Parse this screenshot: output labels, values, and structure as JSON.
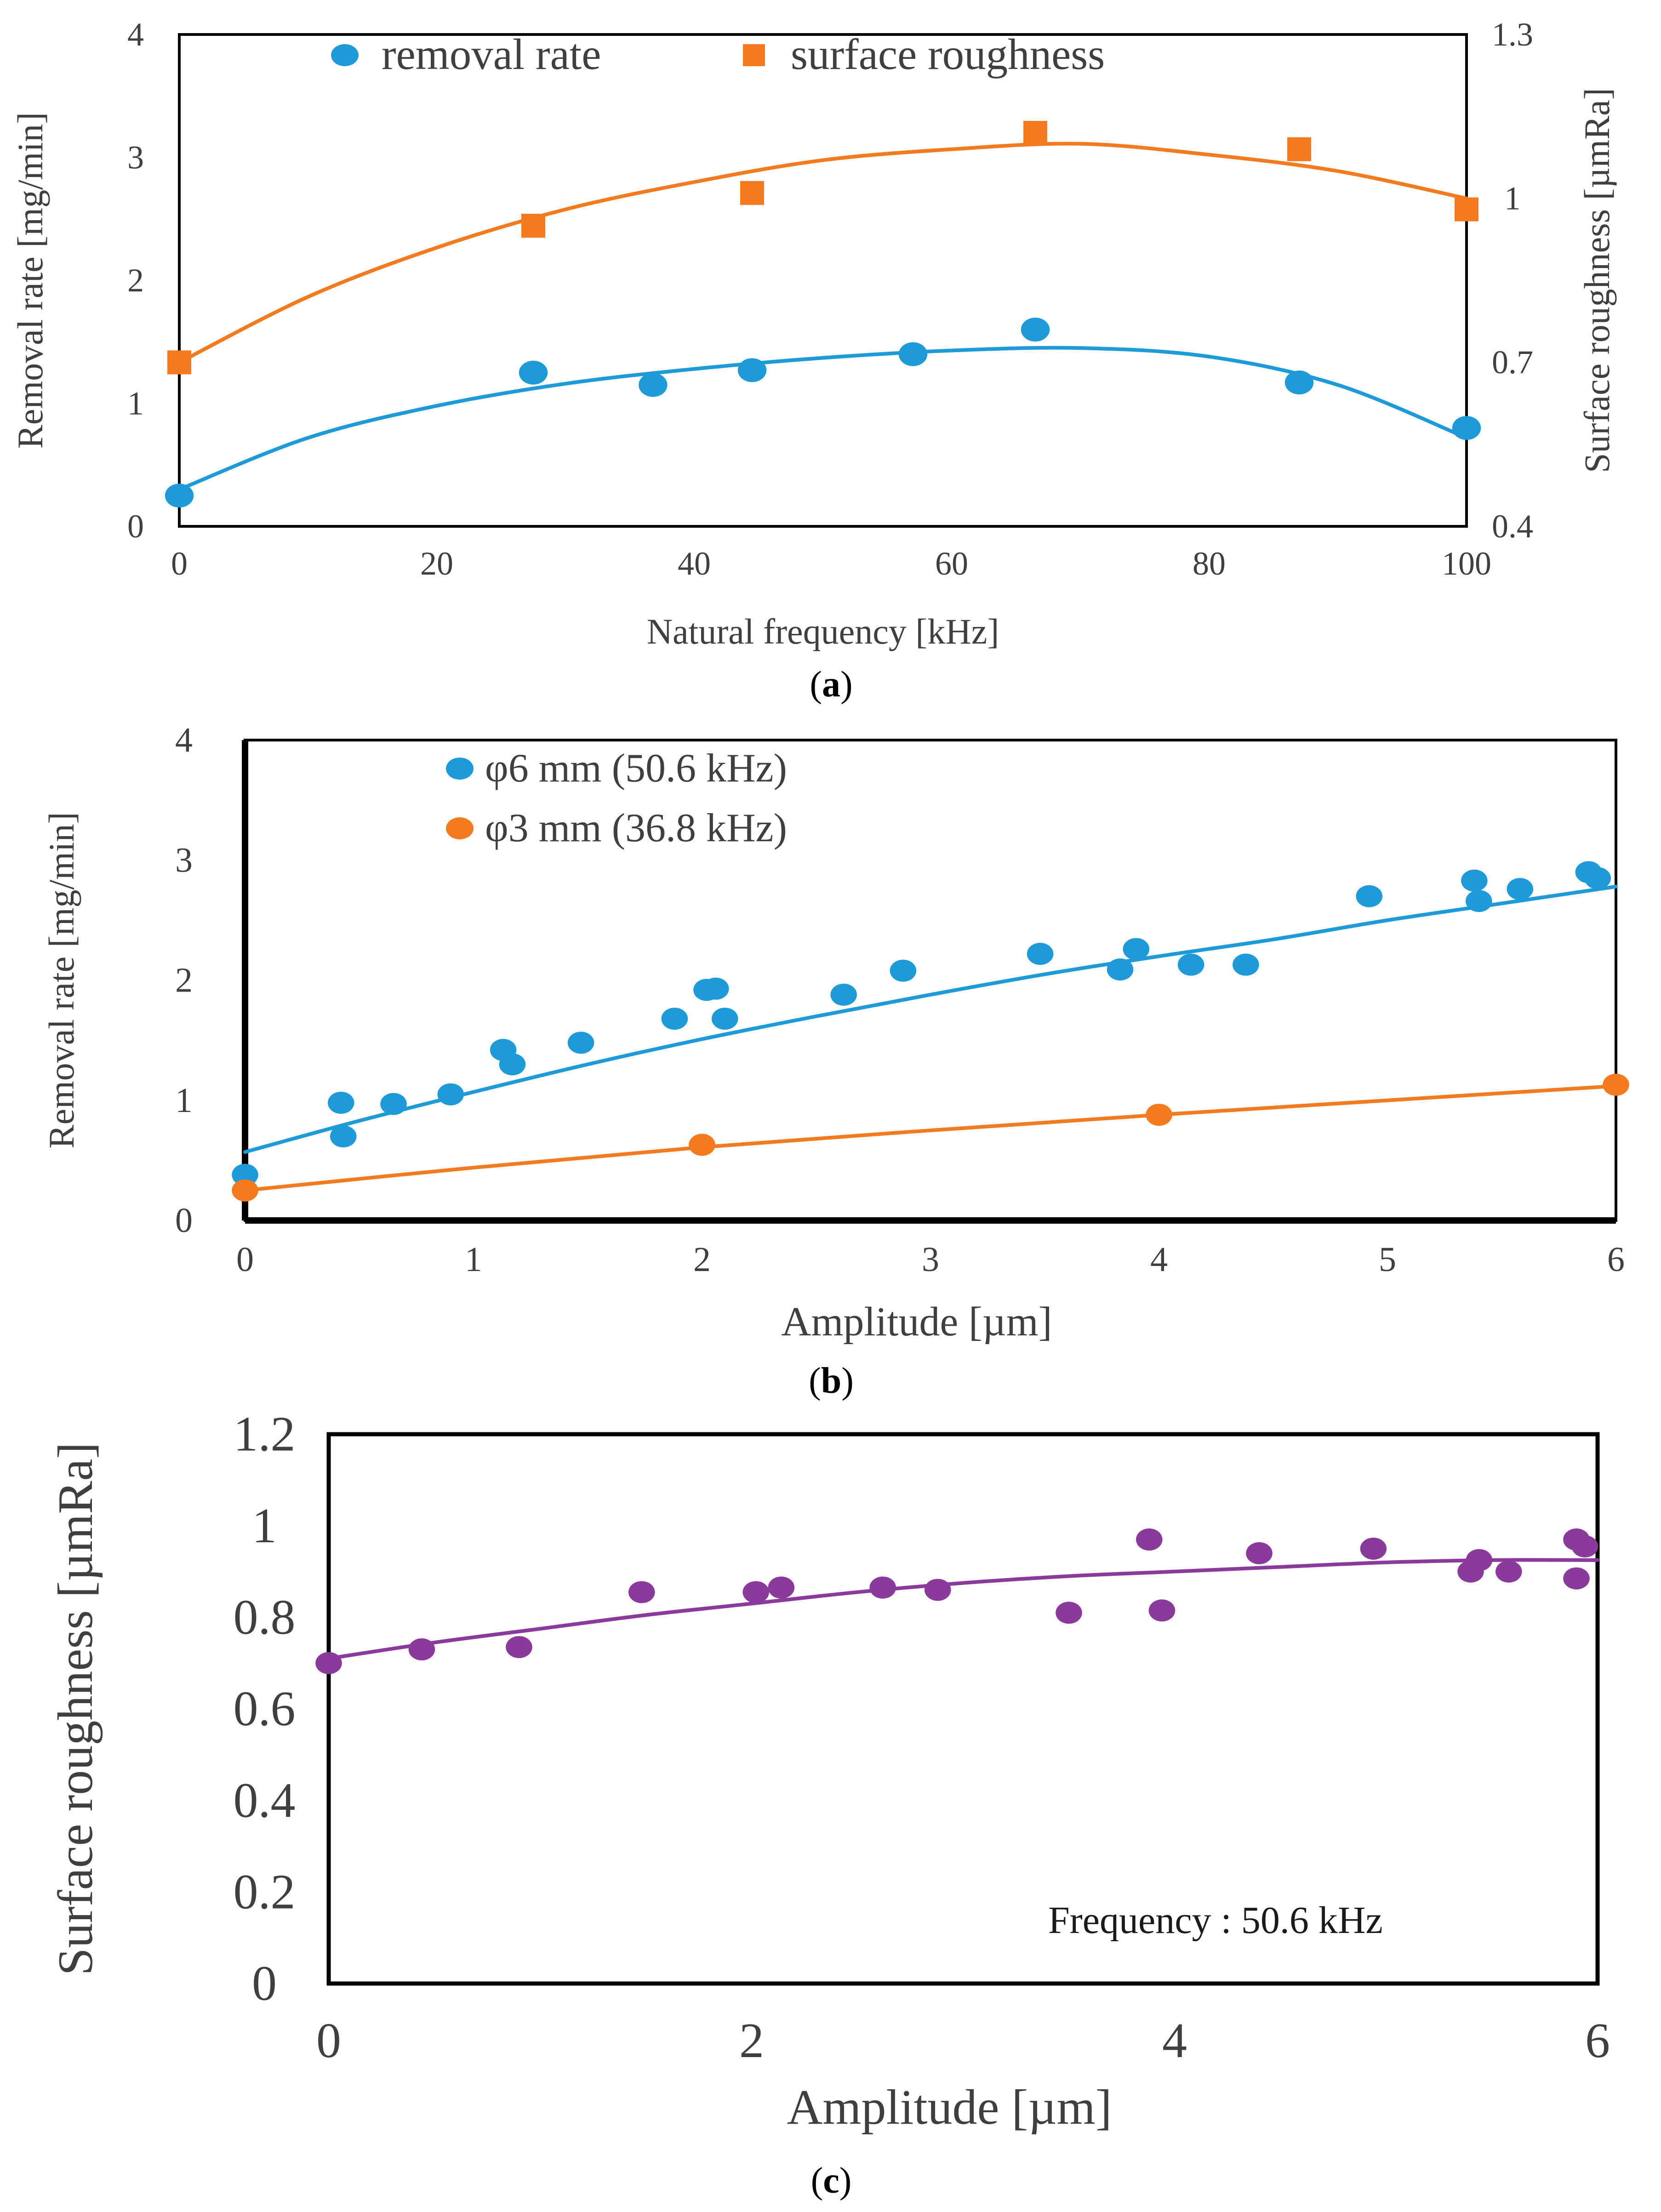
{
  "colors": {
    "blue": "#1f9ad8",
    "orange": "#f47a20",
    "purple": "#8a3a9b",
    "axis": "#000000",
    "text_gray": "#3f3f3f"
  },
  "chart_data": [
    {
      "id": "a",
      "type": "scatter",
      "caption": "(a)",
      "caption_letter": "a",
      "xlabel": "Natural frequency [kHz]",
      "ylabel": "Removal rate [mg/min]",
      "y2label": "Surface roughness [µmRa]",
      "xlim": [
        0,
        100
      ],
      "ylim": [
        0,
        4
      ],
      "y2lim": [
        0.4,
        1.3
      ],
      "xticks": [
        "0",
        "20",
        "40",
        "60",
        "80",
        "100"
      ],
      "yticks": [
        "0",
        "1",
        "2",
        "3",
        "4"
      ],
      "y2ticks": [
        "0.4",
        "0.7",
        "1",
        "1.3"
      ],
      "legend_position": "top",
      "series": [
        {
          "name": "removal rate",
          "marker": "circle",
          "color": "#1f9ad8",
          "axis": "left",
          "x": [
            0,
            27.5,
            36.8,
            44.5,
            57,
            66.5,
            87,
            100
          ],
          "y": [
            0.25,
            1.25,
            1.15,
            1.27,
            1.4,
            1.6,
            1.17,
            0.8
          ],
          "trend": {
            "x": [
              0,
              10,
              20,
              30,
              40,
              50,
              60,
              70,
              80,
              90,
              100
            ],
            "y": [
              0.3,
              0.72,
              0.98,
              1.16,
              1.28,
              1.37,
              1.43,
              1.45,
              1.38,
              1.15,
              0.72
            ]
          }
        },
        {
          "name": "surface roughness",
          "marker": "square",
          "color": "#f47a20",
          "axis": "right",
          "x": [
            0,
            27.5,
            44.5,
            66.5,
            87,
            100
          ],
          "y": [
            0.7,
            0.95,
            1.01,
            1.12,
            1.09,
            0.98
          ],
          "trend": {
            "x": [
              0,
              10,
              20,
              30,
              40,
              50,
              60,
              70,
              80,
              90,
              100
            ],
            "y": [
              0.7,
              0.82,
              0.91,
              0.98,
              1.03,
              1.07,
              1.09,
              1.1,
              1.08,
              1.05,
              1.0
            ]
          }
        }
      ]
    },
    {
      "id": "b",
      "type": "scatter",
      "caption": "(b)",
      "caption_letter": "b",
      "xlabel": "Amplitude [µm]",
      "ylabel": "Removal rate [mg/min]",
      "xlim": [
        0,
        6
      ],
      "ylim": [
        0,
        4
      ],
      "xticks": [
        "0",
        "1",
        "2",
        "3",
        "4",
        "5",
        "6"
      ],
      "yticks": [
        "0",
        "1",
        "2",
        "3",
        "4"
      ],
      "legend_position": "top-left",
      "series": [
        {
          "name": "φ6 mm (50.6 kHz)",
          "marker": "circle",
          "color": "#1f9ad8",
          "x": [
            0,
            0.42,
            0.43,
            0.65,
            0.9,
            1.13,
            1.17,
            1.47,
            1.88,
            2.02,
            2.06,
            2.1,
            2.62,
            2.88,
            3.48,
            3.83,
            3.9,
            4.14,
            4.38,
            4.92,
            5.38,
            5.4,
            5.58,
            5.88,
            5.92
          ],
          "y": [
            0.38,
            0.98,
            0.7,
            0.97,
            1.05,
            1.42,
            1.3,
            1.48,
            1.68,
            1.92,
            1.93,
            1.68,
            1.88,
            2.08,
            2.22,
            2.09,
            2.26,
            2.13,
            2.13,
            2.7,
            2.83,
            2.66,
            2.76,
            2.9,
            2.85
          ],
          "trend": {
            "x": [
              0,
              0.5,
              1,
              1.5,
              2,
              2.5,
              3,
              3.5,
              4,
              4.5,
              5,
              5.5,
              6
            ],
            "y": [
              0.57,
              0.83,
              1.07,
              1.3,
              1.51,
              1.7,
              1.88,
              2.05,
              2.2,
              2.34,
              2.5,
              2.64,
              2.78
            ]
          }
        },
        {
          "name": "φ3 mm (36.8 kHz)",
          "marker": "circle",
          "color": "#f47a20",
          "x": [
            0,
            2,
            4,
            6
          ],
          "y": [
            0.25,
            0.63,
            0.88,
            1.13
          ],
          "trend": {
            "x": [
              0,
              1,
              2,
              3,
              4,
              5,
              6
            ],
            "y": [
              0.25,
              0.44,
              0.61,
              0.75,
              0.88,
              1.0,
              1.12
            ]
          }
        }
      ]
    },
    {
      "id": "c",
      "type": "scatter",
      "caption": "(c)",
      "caption_letter": "c",
      "xlabel": "Amplitude [µm]",
      "ylabel": "Surface roughness [µmRa]",
      "annotation": "Frequency : 50.6 kHz",
      "xlim": [
        0,
        6
      ],
      "ylim": [
        0,
        1.2
      ],
      "xticks": [
        "0",
        "2",
        "4",
        "6"
      ],
      "yticks": [
        "0",
        "0.2",
        "0.4",
        "0.6",
        "0.8",
        "1",
        "1.2"
      ],
      "series": [
        {
          "name": "Frequency : 50.6 kHz",
          "marker": "circle",
          "color": "#8a3a9b",
          "x": [
            0,
            0.44,
            0.9,
            1.48,
            2.02,
            2.14,
            2.62,
            2.88,
            3.5,
            3.88,
            3.94,
            4.4,
            4.94,
            5.4,
            5.44,
            5.58,
            5.9,
            5.9,
            5.94
          ],
          "y": [
            0.7,
            0.73,
            0.735,
            0.855,
            0.855,
            0.865,
            0.865,
            0.86,
            0.81,
            0.97,
            0.815,
            0.94,
            0.95,
            0.9,
            0.925,
            0.9,
            0.97,
            0.885,
            0.955
          ],
          "trend": {
            "x": [
              0,
              0.5,
              1,
              1.5,
              2,
              2.5,
              3,
              3.5,
              4,
              4.5,
              5,
              5.5,
              6
            ],
            "y": [
              0.71,
              0.745,
              0.775,
              0.805,
              0.83,
              0.855,
              0.875,
              0.89,
              0.9,
              0.91,
              0.92,
              0.925,
              0.925
            ]
          }
        }
      ]
    }
  ]
}
